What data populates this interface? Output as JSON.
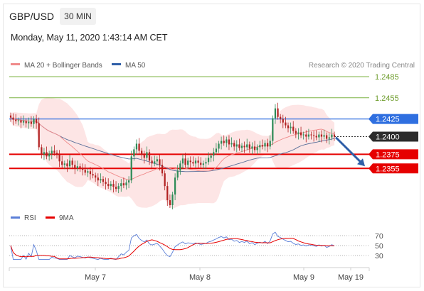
{
  "header": {
    "symbol": "GBP/USD",
    "timeframe": "30 MIN",
    "datetime": "Monday, May 11, 2020 1:43:14 AM CET"
  },
  "legend": {
    "ma20": "MA 20 + Bollinger Bands",
    "ma50": "MA 50",
    "credit": "Research © 2020 Trading Central",
    "rsi": "RSI",
    "rsi_ma": "9MA"
  },
  "colors": {
    "ma20": "#f08a8a",
    "ma50": "#2f5fa8",
    "bands": "#fde2e2",
    "candle_up": "#2e8b57",
    "candle_down": "#b22222",
    "resistance": "#7cb342",
    "pivot": "#2f6fe0",
    "support": "#e60000",
    "rsi": "#5b7fd8",
    "rsi_ma": "#e60000",
    "arrow": "#2f5fa8"
  },
  "chart_data": {
    "type": "candlestick",
    "x_ticks": [
      "May 7",
      "May 8",
      "May 9",
      "May 19"
    ],
    "y_range": [
      1.23,
      1.2495
    ],
    "levels": [
      {
        "label": "1.2485",
        "value": 1.2485,
        "kind": "resistance"
      },
      {
        "label": "1.2455",
        "value": 1.2455,
        "kind": "resistance"
      },
      {
        "label": "1.2425",
        "value": 1.2425,
        "kind": "pivot"
      },
      {
        "label": "1.2400",
        "value": 1.24,
        "kind": "last"
      },
      {
        "label": "1.2375",
        "value": 1.2375,
        "kind": "support"
      },
      {
        "label": "1.2355",
        "value": 1.2355,
        "kind": "support"
      }
    ],
    "close": [
      1.2427,
      1.2424,
      1.2422,
      1.2423,
      1.242,
      1.2422,
      1.2419,
      1.2421,
      1.2418,
      1.2425,
      1.2419,
      1.2385,
      1.2375,
      1.2378,
      1.2372,
      1.2376,
      1.238,
      1.2377,
      1.2375,
      1.2365,
      1.236,
      1.2362,
      1.2358,
      1.2366,
      1.236,
      1.2355,
      1.2358,
      1.2356,
      1.2353,
      1.2349,
      1.2351,
      1.2347,
      1.2345,
      1.2342,
      1.2338,
      1.234,
      1.2336,
      1.2333,
      1.233,
      1.2333,
      1.2329,
      1.2326,
      1.233,
      1.2334,
      1.2331,
      1.2335,
      1.2338,
      1.2372,
      1.2382,
      1.239,
      1.238,
      1.2374,
      1.237,
      1.2378,
      1.2366,
      1.2362,
      1.2365,
      1.2368,
      1.236,
      1.2348,
      1.233,
      1.231,
      1.2303,
      1.2318,
      1.2342,
      1.2352,
      1.2362,
      1.2369,
      1.236,
      1.2366,
      1.2364,
      1.2362,
      1.2366,
      1.2363,
      1.236,
      1.2362,
      1.2364,
      1.237,
      1.2373,
      1.2378,
      1.2383,
      1.239,
      1.2394,
      1.2391,
      1.2396,
      1.2389,
      1.2391,
      1.2386,
      1.2389,
      1.2384,
      1.2387,
      1.2385,
      1.2389,
      1.2383,
      1.2386,
      1.2381,
      1.2385,
      1.2388,
      1.2386,
      1.2391,
      1.2386,
      1.2394,
      1.2426,
      1.244,
      1.2428,
      1.2425,
      1.242,
      1.2416,
      1.2412,
      1.2414,
      1.2408,
      1.2404,
      1.2406,
      1.2402,
      1.2403,
      1.24,
      1.2403,
      1.2402,
      1.2401,
      1.2399,
      1.2403,
      1.24,
      1.2402,
      1.2397,
      1.2399,
      1.2403,
      1.24
    ],
    "rsi_y_ticks": [
      70,
      50,
      30
    ]
  }
}
